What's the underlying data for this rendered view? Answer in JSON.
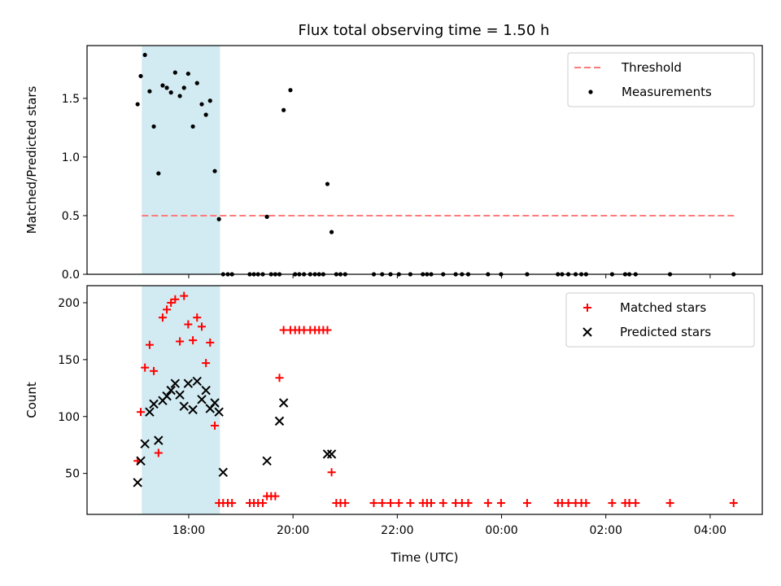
{
  "chart_data": [
    {
      "type": "scatter",
      "title": "Flux total observing time = 1.50 h",
      "xlabel": "",
      "ylabel": "Matched/Predicted stars",
      "x_units": "hours since 00:00 UTC of first day",
      "xlim": [
        16.05,
        29.0
      ],
      "ylim": [
        0,
        1.95
      ],
      "yticks": [
        "0.0",
        "0.5",
        "1.0",
        "1.5"
      ],
      "ytick_values": [
        0,
        0.5,
        1.0,
        1.5
      ],
      "xticks": [
        "18:00",
        "20:00",
        "22:00",
        "00:00",
        "02:00",
        "04:00"
      ],
      "xtick_values": [
        18,
        20,
        22,
        24,
        26,
        28
      ],
      "xtick_labels_visible": false,
      "legend_position": "top-right",
      "grid": false,
      "highlight_span": {
        "x0": 17.1,
        "x1": 18.6,
        "color": "#add8e6"
      },
      "series": [
        {
          "name": "Threshold",
          "style": "dashed-line",
          "color": "#ff7b7b",
          "x": [
            17.1,
            28.5
          ],
          "y": [
            0.5,
            0.5
          ]
        },
        {
          "name": "Measurements",
          "style": "dot",
          "color": "#000000",
          "x": [
            17.02,
            17.08,
            17.16,
            17.25,
            17.33,
            17.42,
            17.5,
            17.58,
            17.66,
            17.74,
            17.83,
            17.91,
            17.99,
            18.08,
            18.16,
            18.25,
            18.33,
            18.41,
            18.5,
            18.58,
            18.66,
            18.75,
            18.83,
            19.17,
            19.25,
            19.33,
            19.42,
            19.5,
            19.58,
            19.66,
            19.74,
            19.82,
            19.95,
            20.04,
            20.12,
            20.21,
            20.33,
            20.42,
            20.5,
            20.58,
            20.66,
            20.74,
            20.83,
            20.91,
            21.0,
            21.55,
            21.71,
            21.87,
            22.03,
            22.25,
            22.49,
            22.57,
            22.65,
            22.88,
            23.12,
            23.24,
            23.36,
            23.74,
            23.99,
            24.49,
            25.08,
            25.16,
            25.28,
            25.42,
            25.53,
            25.62,
            26.12,
            26.37,
            26.45,
            26.57,
            27.23,
            28.45
          ],
          "y": [
            1.45,
            1.69,
            1.87,
            1.56,
            1.26,
            0.86,
            1.61,
            1.59,
            1.55,
            1.72,
            1.52,
            1.59,
            1.71,
            1.26,
            1.63,
            1.45,
            1.36,
            1.48,
            0.88,
            0.47,
            0.0,
            0.0,
            0.0,
            0.0,
            0.0,
            0.0,
            0.0,
            0.49,
            0.0,
            0.0,
            0.0,
            1.4,
            1.57,
            0.0,
            0.0,
            0.0,
            0.0,
            0.0,
            0.0,
            0.0,
            0.77,
            0.36,
            0.0,
            0.0,
            0.0,
            0.0,
            0.0,
            0.0,
            0.0,
            0.0,
            0.0,
            0.0,
            0.0,
            0.0,
            0.0,
            0.0,
            0.0,
            0.0,
            0.0,
            0.0,
            0.0,
            0.0,
            0.0,
            0.0,
            0.0,
            0.0,
            0.0,
            0.0,
            0.0,
            0.0,
            0.0,
            0.0
          ]
        }
      ]
    },
    {
      "type": "scatter",
      "title": "",
      "xlabel": "Time (UTC)",
      "ylabel": "Count",
      "x_units": "hours since 00:00 UTC of first day",
      "xlim": [
        16.05,
        29.0
      ],
      "ylim": [
        14,
        215
      ],
      "yticks": [
        "50",
        "100",
        "150",
        "200"
      ],
      "ytick_values": [
        50,
        100,
        150,
        200
      ],
      "xticks": [
        "18:00",
        "20:00",
        "22:00",
        "00:00",
        "02:00",
        "04:00"
      ],
      "xtick_values": [
        18,
        20,
        22,
        24,
        26,
        28
      ],
      "xtick_labels_visible": true,
      "legend_position": "top-right",
      "grid": false,
      "highlight_span": {
        "x0": 17.1,
        "x1": 18.6,
        "color": "#add8e6"
      },
      "series": [
        {
          "name": "Matched stars",
          "style": "plus",
          "color": "#ff0000",
          "x": [
            17.02,
            17.08,
            17.16,
            17.25,
            17.33,
            17.42,
            17.5,
            17.58,
            17.66,
            17.74,
            17.83,
            17.91,
            17.99,
            18.08,
            18.16,
            18.25,
            18.33,
            18.41,
            18.5,
            18.58,
            18.66,
            18.75,
            18.83,
            19.17,
            19.25,
            19.33,
            19.42,
            19.5,
            19.58,
            19.66,
            19.74,
            19.82,
            19.95,
            20.04,
            20.12,
            20.21,
            20.33,
            20.42,
            20.5,
            20.58,
            20.66,
            20.74,
            20.83,
            20.91,
            21.0,
            21.55,
            21.71,
            21.87,
            22.03,
            22.25,
            22.49,
            22.57,
            22.65,
            22.88,
            23.12,
            23.24,
            23.36,
            23.74,
            23.99,
            24.49,
            25.08,
            25.16,
            25.28,
            25.42,
            25.53,
            25.62,
            26.12,
            26.37,
            26.45,
            26.57,
            27.23,
            28.45
          ],
          "y": [
            61,
            104,
            143,
            163,
            140,
            68,
            187,
            194,
            200,
            203,
            166,
            206,
            181,
            167,
            187,
            179,
            147,
            165,
            92,
            24,
            24,
            24,
            24,
            24,
            24,
            24,
            24,
            30,
            30,
            30,
            134,
            176,
            176,
            176,
            176,
            176,
            176,
            176,
            176,
            176,
            176,
            51,
            24,
            24,
            24,
            24,
            24,
            24,
            24,
            24,
            24,
            24,
            24,
            24,
            24,
            24,
            24,
            24,
            24,
            24,
            24,
            24,
            24,
            24,
            24,
            24,
            24,
            24,
            24,
            24,
            24,
            24
          ]
        },
        {
          "name": "Predicted stars",
          "style": "x",
          "color": "#000000",
          "x": [
            17.02,
            17.08,
            17.16,
            17.25,
            17.33,
            17.42,
            17.5,
            17.58,
            17.66,
            17.74,
            17.83,
            17.91,
            17.99,
            18.08,
            18.16,
            18.25,
            18.33,
            18.41,
            18.5,
            18.58,
            18.66,
            19.5,
            19.74,
            19.82,
            20.66,
            20.74
          ],
          "y": [
            42,
            61,
            76,
            104,
            111,
            79,
            114,
            118,
            123,
            129,
            119,
            109,
            129,
            106,
            131,
            115,
            123,
            107,
            112,
            104,
            51,
            61,
            96,
            112,
            67,
            67
          ]
        }
      ]
    }
  ]
}
